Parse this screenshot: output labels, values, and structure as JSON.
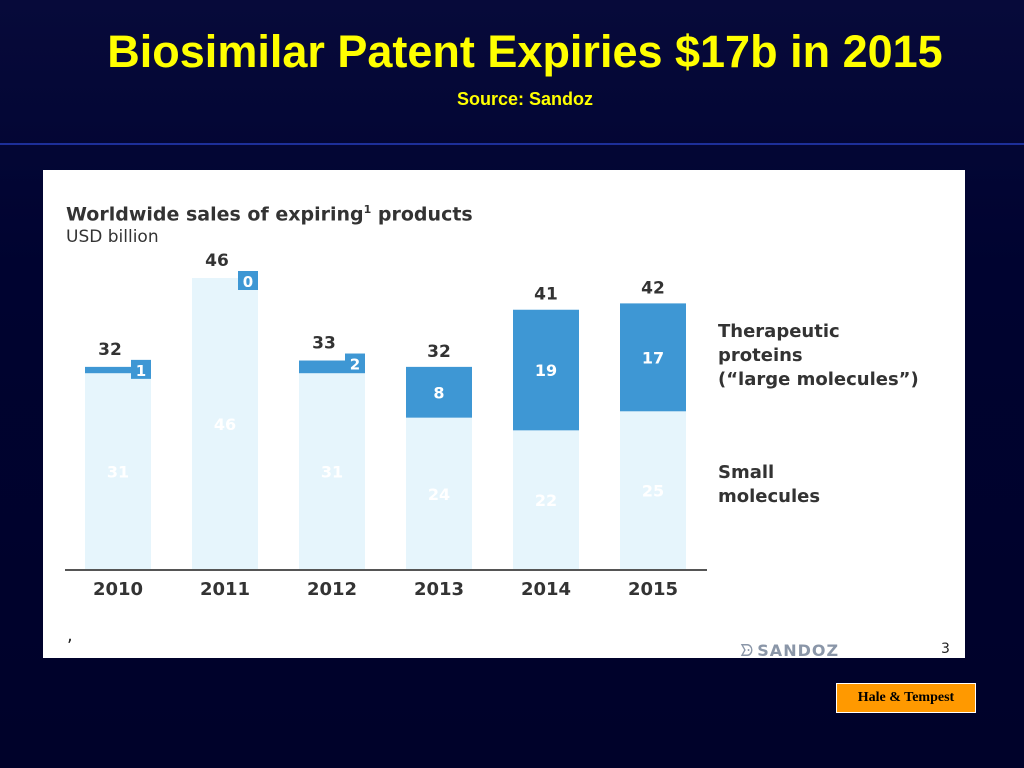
{
  "slide": {
    "title": "Biosimilar Patent Expiries $17b in 2015",
    "subtitle": "Source: Sandoz",
    "credit": "Hale & Tempest"
  },
  "colors": {
    "background": "#00022a",
    "title": "#ffff00",
    "large_molecules": "#3e97d4",
    "small_molecules": "#e6f5fc",
    "credit_box": "#ff9900"
  },
  "chart_data": {
    "type": "bar",
    "stacked": true,
    "title": "Worldwide sales of expiring",
    "title_superscript": "1",
    "title_suffix": " products",
    "unit": "USD billion",
    "categories": [
      "2010",
      "2011",
      "2012",
      "2013",
      "2014",
      "2015"
    ],
    "series": [
      {
        "name": "Small molecules",
        "values": [
          31,
          46,
          31,
          24,
          22,
          25
        ]
      },
      {
        "name": "Therapeutic proteins (“large molecules”)",
        "values": [
          1,
          0,
          2,
          8,
          19,
          17
        ]
      }
    ],
    "totals": [
      32,
      46,
      33,
      32,
      41,
      42
    ],
    "ylim": [
      0,
      46
    ],
    "grid": false,
    "legend_position": "right",
    "legend": {
      "large_lines": [
        "Therapeutic",
        "proteins",
        "(“large molecules”)"
      ],
      "small_lines": [
        "Small",
        "molecules"
      ]
    }
  },
  "footer": {
    "mark": ",",
    "logo_text": "SANDOZ",
    "logo_icon": "sandoz-swirl-icon",
    "page_number": "3"
  }
}
